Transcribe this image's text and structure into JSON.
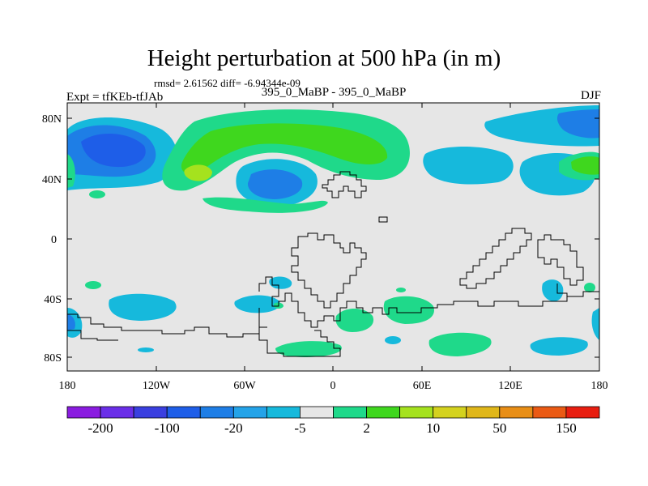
{
  "header": {
    "title": "Height perturbation at 500 hPa (in m)",
    "rmsd_line": "rmsd= 2.61562 diff= -6.94344e-09",
    "expt": "Expt = tfKEb-tfJAb",
    "center": "395_0_MaBP - 395_0_MaBP",
    "season": "DJF"
  },
  "axes": {
    "y_ticks": [
      "80N",
      "40N",
      "0",
      "40S",
      "80S"
    ],
    "x_ticks": [
      "180",
      "120W",
      "60W",
      "0",
      "60E",
      "120E",
      "180"
    ]
  },
  "colorbar": {
    "colors": [
      "#8a1ce0",
      "#6a2ee8",
      "#3a3fe0",
      "#1e5ee8",
      "#1e7ee6",
      "#24a3e8",
      "#16b9dc",
      "#e6e6e6",
      "#1fd98a",
      "#3fd71e",
      "#a5e21e",
      "#d4d21e",
      "#e0b71a",
      "#e88e16",
      "#ea5a14",
      "#e81e10"
    ],
    "labels": [
      "-200",
      "-100",
      "-20",
      "-5",
      "2",
      "10",
      "50",
      "150"
    ]
  },
  "colors": {
    "background_fill": "#e6e6e6",
    "coastline": "#000000"
  }
}
